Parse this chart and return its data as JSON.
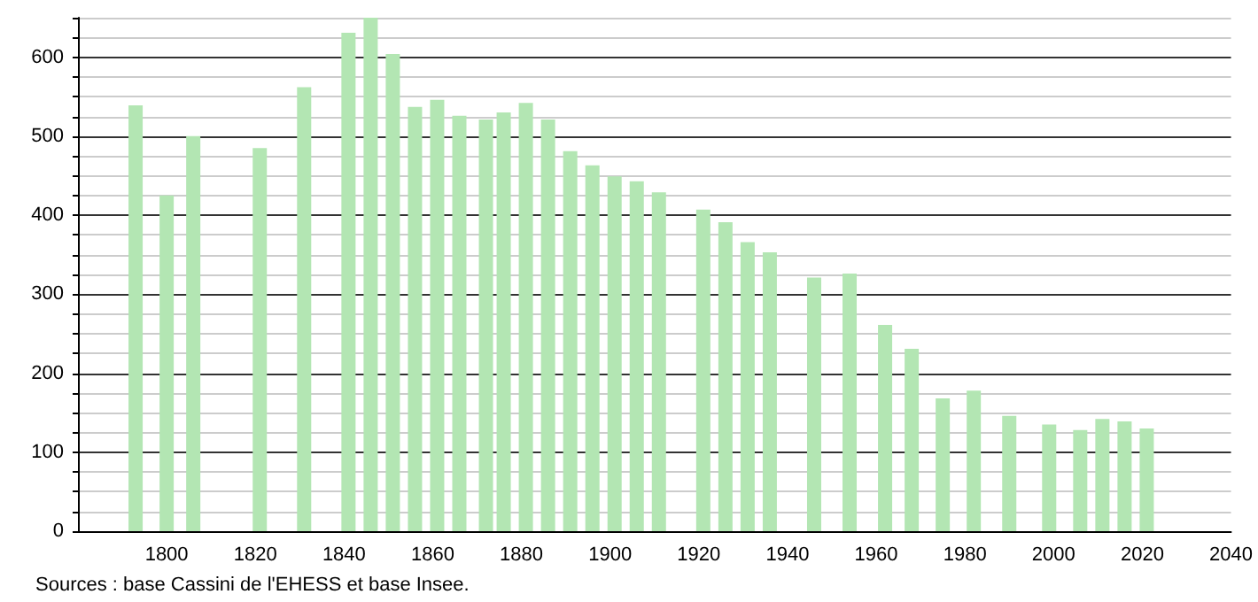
{
  "chart_data": {
    "type": "bar",
    "color": "#b3e6b3",
    "x": [
      1793,
      1800,
      1806,
      1821,
      1831,
      1841,
      1846,
      1851,
      1856,
      1861,
      1866,
      1872,
      1876,
      1881,
      1886,
      1891,
      1896,
      1901,
      1906,
      1911,
      1921,
      1926,
      1931,
      1936,
      1946,
      1954,
      1962,
      1968,
      1975,
      1982,
      1990,
      1999,
      2006,
      2011,
      2016,
      2020,
      2021
    ],
    "values": [
      539,
      425,
      500,
      485,
      562,
      631,
      650,
      604,
      537,
      546,
      526,
      521,
      530,
      542,
      521,
      481,
      463,
      449,
      443,
      429,
      407,
      391,
      366,
      353,
      321,
      326,
      261,
      231,
      168,
      178,
      146,
      135,
      128,
      142,
      139,
      null,
      130
    ],
    "xlim": [
      1780,
      2040
    ],
    "xticks": [
      1800,
      1820,
      1840,
      1860,
      1880,
      1900,
      1920,
      1940,
      1960,
      1980,
      2000,
      2020,
      2040
    ],
    "ylim": [
      0,
      650
    ],
    "yticks": [
      0,
      {
        "value": 25,
        "label": null
      },
      {
        "value": 50,
        "label": null
      },
      {
        "value": 75,
        "label": null
      },
      100,
      {
        "value": 125,
        "label": null
      },
      {
        "value": 150,
        "label": null
      },
      {
        "value": 175,
        "label": null
      },
      200,
      {
        "value": 225,
        "label": null
      },
      {
        "value": 250,
        "label": null
      },
      {
        "value": 275,
        "label": null
      },
      300,
      {
        "value": 325,
        "label": null
      },
      {
        "value": 350,
        "label": null
      },
      {
        "value": 375,
        "label": null
      },
      400,
      {
        "value": 425,
        "label": null
      },
      {
        "value": 450,
        "label": null
      },
      {
        "value": 475,
        "label": null
      },
      500,
      {
        "value": 525,
        "label": null
      },
      {
        "value": 550,
        "label": null
      },
      {
        "value": 575,
        "label": null
      },
      600,
      {
        "value": 625,
        "label": null
      },
      {
        "value": 650,
        "label": null
      }
    ],
    "grid": "y",
    "annotations": [
      "Sources : base Cassini de l'EHESS et base Insee."
    ]
  }
}
